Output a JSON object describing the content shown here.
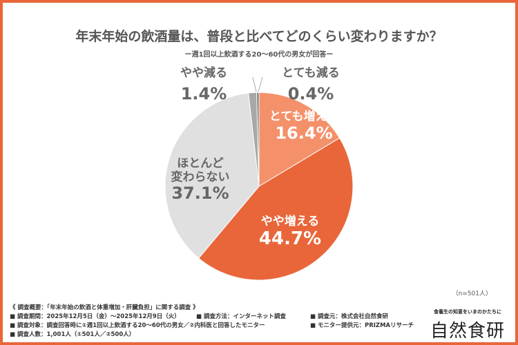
{
  "title": "年末年始の飲酒量は、普段と比べてどのくらい変わりますか？",
  "subtitle": "ー週1回以上飲酒する20〜60代の男女が回答ー",
  "chart_data": {
    "type": "pie",
    "title": "年末年始の飲酒量は、普段と比べてどのくらい変わりますか？",
    "slices": [
      {
        "label": "とても増える",
        "value": 16.4,
        "display": "16.4%",
        "color": "#f4916a"
      },
      {
        "label": "やや増える",
        "value": 44.7,
        "display": "44.7%",
        "color": "#e8663a"
      },
      {
        "label": "ほとんど変わらない",
        "label_lines": [
          "ほとんど",
          "変わらない"
        ],
        "value": 37.1,
        "display": "37.1%",
        "color": "#e0e0e0"
      },
      {
        "label": "やや減る",
        "value": 1.4,
        "display": "1.4%",
        "color": "#a8a8a8"
      },
      {
        "label": "とても減る",
        "value": 0.4,
        "display": "0.4%",
        "color": "#777777"
      }
    ],
    "start": "top",
    "direction": "clockwise"
  },
  "sample_note": "（n=501人）",
  "footer": {
    "heading": "《 調査概要：「年末年始の飲酒と体重増加・肝臓負担」に関する調査 》",
    "items": [
      "■ 調査期間：2025年12月5日（金）〜2025年12月9日（火）",
      "■ 調査方法：インターネット調査",
      "■ 調査元：株式会社自然食研",
      "■ 調査対象：調査回答時に①週1回以上飲酒する20〜60代の男女／②内科医と回答したモニター",
      "■ モニター提供元：PRIZMAリサーチ",
      "■ 調査人数：1,001人（①501人／②500人）"
    ]
  },
  "brand": {
    "tagline": "食養生の知恵をいまのかたちに",
    "logo": "自然食研"
  }
}
